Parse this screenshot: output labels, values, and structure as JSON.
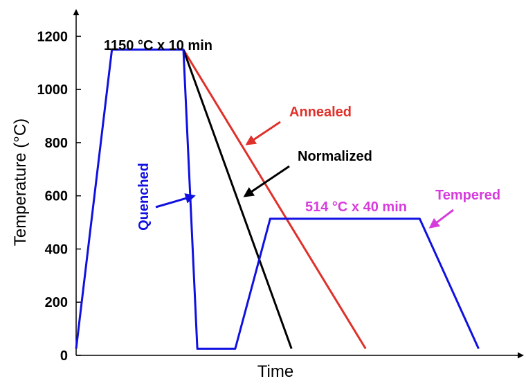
{
  "chart_data": {
    "type": "line",
    "title": "",
    "xlabel": "Time",
    "ylabel": "Temperature (°C)",
    "ylim": [
      0,
      1300
    ],
    "xlim": [
      0,
      100
    ],
    "x_ticks_shown": false,
    "y_ticks": [
      0,
      200,
      400,
      600,
      800,
      1000,
      1200
    ],
    "grid": false,
    "colors": {
      "Quenched": "#1010e0",
      "Normalized": "#000000",
      "Annealed": "#e0302a",
      "Tempered_label": "#d63cdc",
      "hold_label": "#000000"
    },
    "series": [
      {
        "name": "Quenched",
        "x": [
          0,
          8.2,
          24.6,
          27.8,
          36.5,
          44.5,
          78.8,
          92.3
        ],
        "y": [
          25,
          1150,
          1150,
          25,
          25,
          514,
          514,
          25
        ]
      },
      {
        "name": "Normalized",
        "x": [
          24.6,
          49.4
        ],
        "y": [
          1150,
          25
        ]
      },
      {
        "name": "Annealed",
        "x": [
          24.6,
          66.4
        ],
        "y": [
          1150,
          25
        ]
      }
    ],
    "annotations": [
      {
        "id": "hold-top",
        "text": "1150 °C x 10 min"
      },
      {
        "id": "hold-temper",
        "text": "514 °C x 40 min"
      },
      {
        "id": "annealed",
        "text": "Annealed"
      },
      {
        "id": "normalized",
        "text": "Normalized"
      },
      {
        "id": "quenched",
        "text": "Quenched"
      },
      {
        "id": "tempered",
        "text": "Tempered"
      }
    ]
  }
}
